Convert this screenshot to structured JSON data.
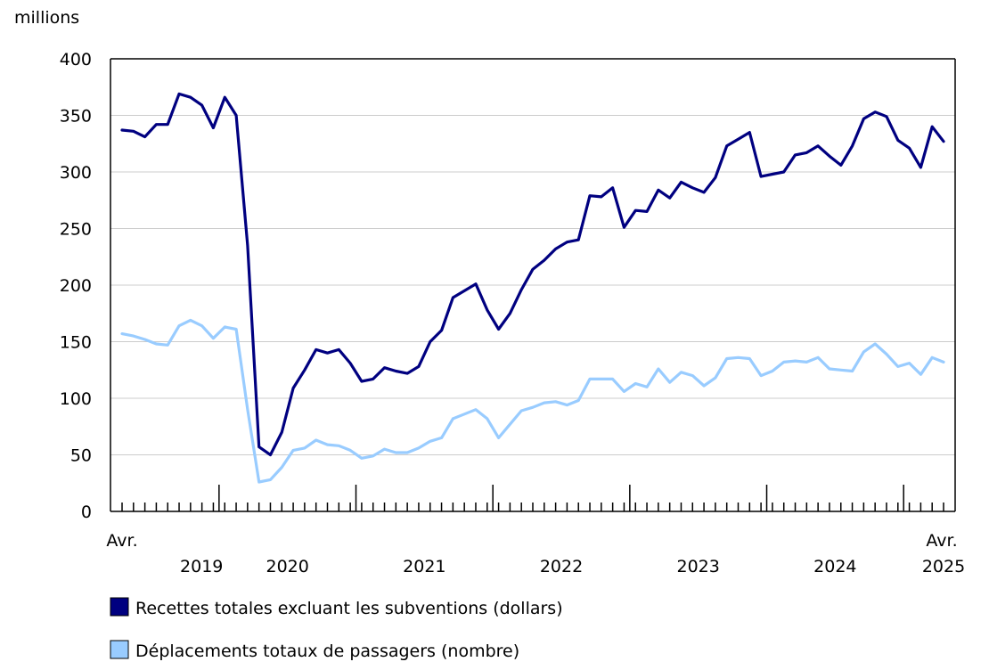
{
  "chart_data": {
    "type": "line",
    "unit_label": "millions",
    "x_start_label": "Avr.",
    "x_end_label": "Avr.",
    "x_start_year": "2019",
    "x_end_year": "2025",
    "year_labels": [
      "2019",
      "2020",
      "2021",
      "2022",
      "2023",
      "2024",
      "2025"
    ],
    "ylim": [
      0,
      400
    ],
    "yticks": [
      0,
      50,
      100,
      150,
      200,
      250,
      300,
      350,
      400
    ],
    "n_months": 73,
    "series": [
      {
        "name": "Recettes totales excluant les subventions (dollars)",
        "color": "#000080",
        "values": [
          337,
          336,
          331,
          342,
          342,
          369,
          366,
          359,
          339,
          366,
          350,
          235,
          57,
          50,
          70,
          109,
          125,
          143,
          140,
          143,
          131,
          115,
          117,
          127,
          124,
          122,
          128,
          150,
          160,
          189,
          195,
          201,
          178,
          161,
          175,
          196,
          214,
          222,
          232,
          238,
          240,
          279,
          278,
          286,
          251,
          266,
          265,
          284,
          277,
          291,
          286,
          282,
          295,
          323,
          329,
          335,
          296,
          298,
          300,
          315,
          317,
          323,
          314,
          306,
          323,
          347,
          353,
          349,
          328,
          321,
          304,
          340,
          327
        ]
      },
      {
        "name": "Déplacements totaux de passagers (nombre)",
        "color": "#99ccff",
        "values": [
          157,
          155,
          152,
          148,
          147,
          164,
          169,
          164,
          153,
          163,
          161,
          90,
          26,
          28,
          39,
          54,
          56,
          63,
          59,
          58,
          54,
          47,
          49,
          55,
          52,
          52,
          56,
          62,
          65,
          82,
          86,
          90,
          82,
          65,
          77,
          89,
          92,
          96,
          97,
          94,
          98,
          117,
          117,
          117,
          106,
          113,
          110,
          126,
          114,
          123,
          120,
          111,
          118,
          135,
          136,
          135,
          120,
          124,
          132,
          133,
          132,
          136,
          126,
          125,
          124,
          141,
          148,
          139,
          128,
          131,
          121,
          136,
          132
        ]
      }
    ]
  }
}
